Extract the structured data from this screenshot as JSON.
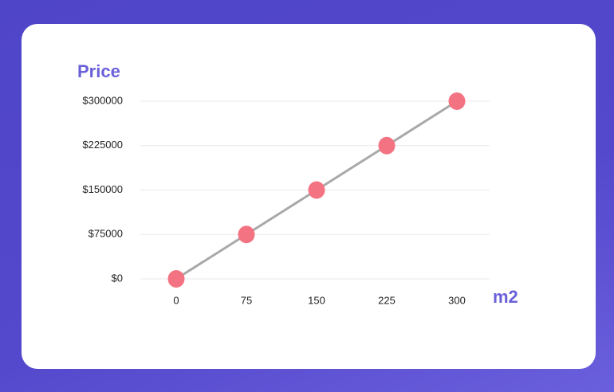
{
  "chart_data": {
    "type": "line",
    "xlabel": "m2",
    "ylabel": "Price",
    "x": [
      0,
      75,
      150,
      225,
      300
    ],
    "series": [
      {
        "values": [
          0,
          75000,
          150000,
          225000,
          300000
        ],
        "color": "#f47382",
        "line_color": "#a9a9a9"
      }
    ],
    "xlim": [
      0,
      300
    ],
    "xticks": [
      0,
      75,
      150,
      225,
      300
    ],
    "ylim": [
      0,
      300000
    ],
    "yticks": [
      {
        "value": 0,
        "label": "$0"
      },
      {
        "value": 75000,
        "label": "$75000"
      },
      {
        "value": 150000,
        "label": "$150000"
      },
      {
        "value": 225000,
        "label": "$225000"
      },
      {
        "value": 300000,
        "label": "$300000"
      }
    ],
    "grid": true
  }
}
